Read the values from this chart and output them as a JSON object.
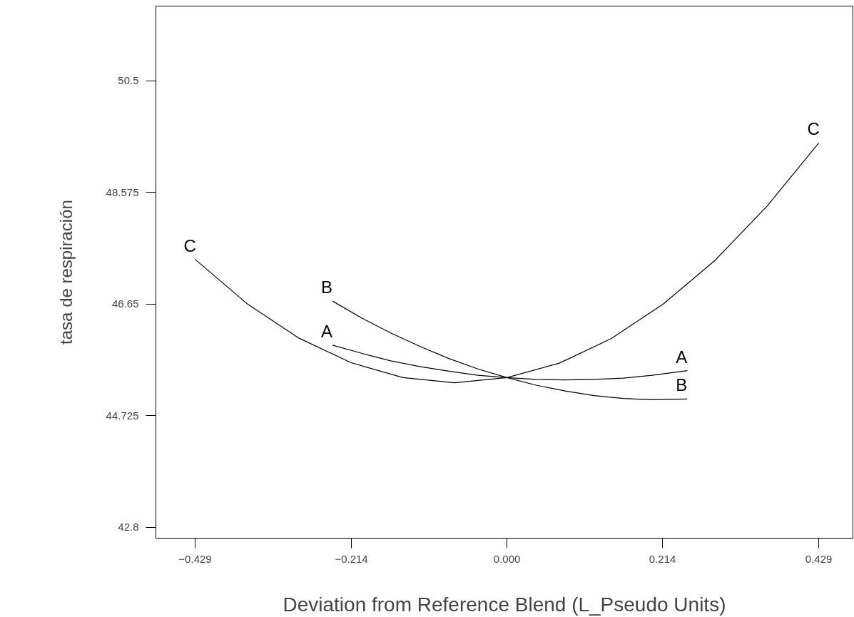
{
  "chart_data": {
    "type": "line",
    "xlabel": "Deviation from Reference Blend (L_Pseudo Units)",
    "ylabel": "tasa de respiración",
    "xlim": [
      -0.483,
      0.476
    ],
    "ylim": [
      42.61,
      51.79
    ],
    "xticks": [
      -0.429,
      -0.214,
      {
        "value": 0,
        "label": "0.000"
      },
      0.214,
      0.429
    ],
    "yticks": [
      42.8,
      44.725,
      46.65,
      48.575,
      50.5
    ],
    "grid": false,
    "marker": "none",
    "line_style": "solid",
    "series": [
      {
        "name": "A",
        "color": "#000000",
        "x": [
          -0.24,
          -0.2,
          -0.16,
          -0.12,
          -0.08,
          -0.04,
          0,
          0.04,
          0.08,
          0.12,
          0.16,
          0.2,
          0.248
        ],
        "values": [
          45.94,
          45.8,
          45.67,
          45.57,
          45.49,
          45.42,
          45.38,
          45.35,
          45.34,
          45.35,
          45.37,
          45.42,
          45.5
        ]
      },
      {
        "name": "B",
        "color": "#000000",
        "x": [
          -0.24,
          -0.2,
          -0.16,
          -0.12,
          -0.08,
          -0.04,
          0,
          0.04,
          0.08,
          0.12,
          0.16,
          0.2,
          0.248
        ],
        "values": [
          46.7,
          46.41,
          46.15,
          45.92,
          45.71,
          45.53,
          45.38,
          45.25,
          45.15,
          45.07,
          45.02,
          45.0,
          45.01
        ]
      },
      {
        "name": "C",
        "color": "#000000",
        "x": [
          -0.429,
          -0.358,
          -0.286,
          -0.215,
          -0.143,
          -0.072,
          0,
          0.072,
          0.143,
          0.215,
          0.286,
          0.358,
          0.429
        ],
        "values": [
          47.42,
          46.66,
          46.06,
          45.64,
          45.38,
          45.29,
          45.38,
          45.63,
          46.05,
          46.65,
          47.4,
          48.34,
          49.43
        ]
      }
    ]
  }
}
